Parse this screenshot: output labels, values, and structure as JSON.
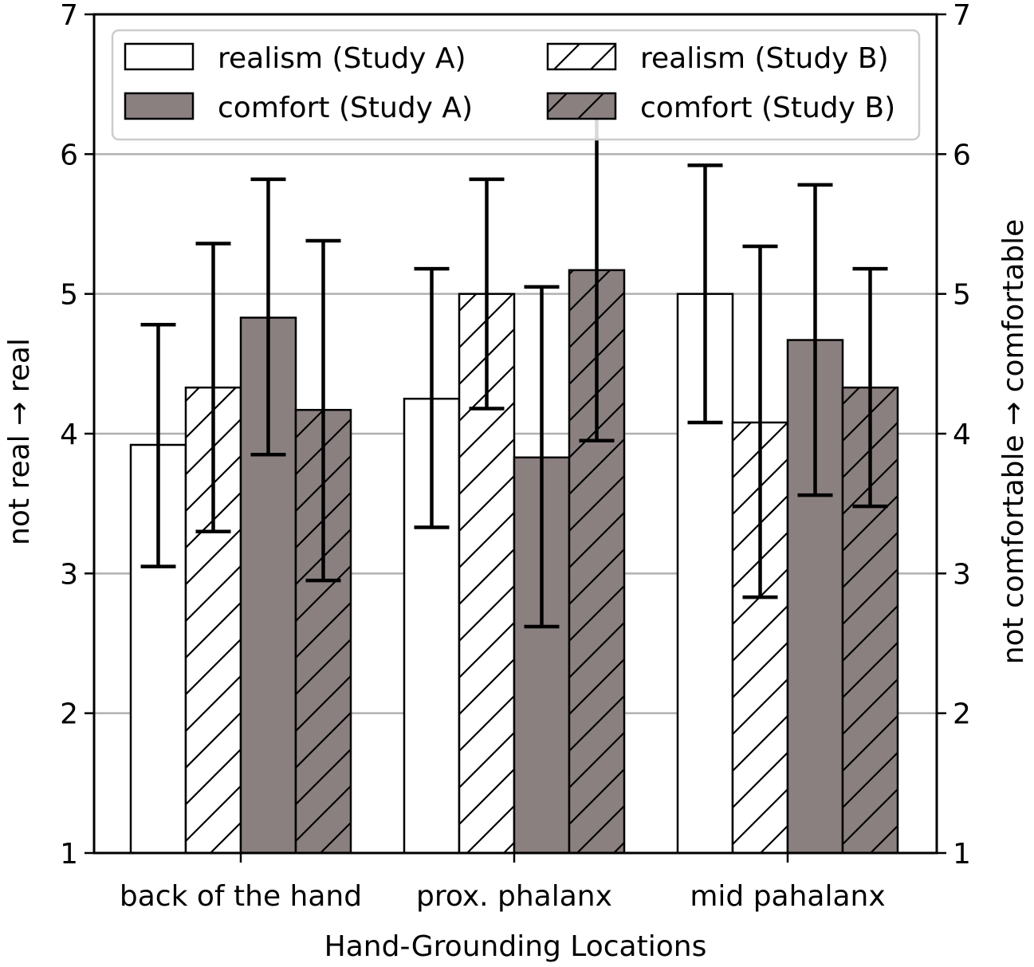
{
  "chart_data": {
    "type": "bar",
    "categories": [
      "back of the hand",
      "prox.  phalanx",
      "mid pahalanx"
    ],
    "series": [
      {
        "name": "realism  (Study A)",
        "values": [
          3.92,
          4.25,
          5.0
        ],
        "err_low": [
          3.05,
          3.33,
          4.08
        ],
        "err_high": [
          4.78,
          5.18,
          5.92
        ],
        "fill": "#ffffff",
        "hatch": false
      },
      {
        "name": "realism  (Study B)",
        "values": [
          4.33,
          5.0,
          4.08
        ],
        "err_low": [
          3.3,
          4.18,
          2.83
        ],
        "err_high": [
          5.36,
          5.82,
          5.34
        ],
        "fill": "#ffffff",
        "hatch": true
      },
      {
        "name": "comfort (Study A)",
        "values": [
          4.83,
          3.83,
          4.67
        ],
        "err_low": [
          3.85,
          2.62,
          3.56
        ],
        "err_high": [
          5.82,
          5.05,
          5.78
        ],
        "fill": "#8b8080",
        "hatch": false
      },
      {
        "name": "comfort (Study B)",
        "values": [
          4.17,
          5.17,
          4.33
        ],
        "err_low": [
          2.95,
          3.95,
          3.48
        ],
        "err_high": [
          5.38,
          6.4,
          5.18
        ],
        "fill": "#8b8080",
        "hatch": true
      }
    ],
    "yticks": [
      1,
      2,
      3,
      4,
      5,
      6,
      7
    ],
    "yticks_right": [
      1,
      2,
      3,
      4,
      5,
      6,
      7
    ],
    "ylim": [
      1,
      7
    ],
    "xlabel": "Hand-Grounding Locations",
    "ylabel": "not real → real",
    "ylabel_right": "not comfortable → comfortable",
    "grid": "horizontal",
    "legend_position": "top"
  }
}
